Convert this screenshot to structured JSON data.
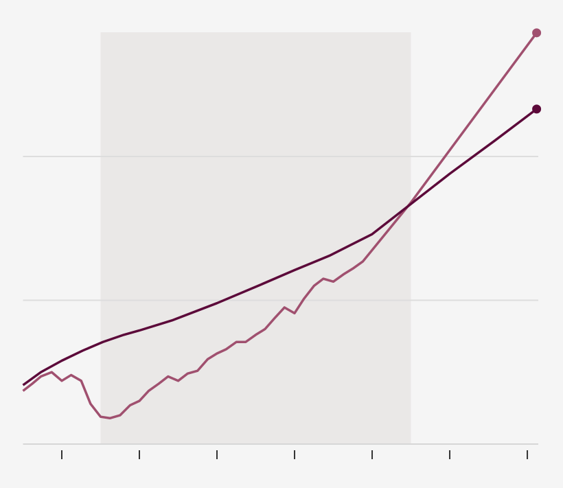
{
  "chart_data": {
    "type": "line",
    "xlim": [
      -0.5,
      6.12
    ],
    "xticks": [
      0,
      1,
      2,
      3,
      4,
      5,
      6
    ],
    "ylim": [
      0,
      2.9
    ],
    "yticks": [
      0,
      1,
      2
    ],
    "grid": true,
    "shade": [
      0.5,
      4.5
    ],
    "shade_color": "#eae8e7",
    "end_markers": true,
    "series": [
      {
        "color": "#a0506f",
        "x": [
          -0.5,
          -0.38,
          -0.27,
          -0.13,
          0,
          0.12,
          0.25,
          0.37,
          0.5,
          0.62,
          0.75,
          0.88,
          1.0,
          1.12,
          1.25,
          1.37,
          1.5,
          1.62,
          1.75,
          1.88,
          2.0,
          2.12,
          2.25,
          2.37,
          2.5,
          2.62,
          2.75,
          2.87,
          3.0,
          3.12,
          3.25,
          3.37,
          3.5,
          3.63,
          3.75,
          3.88,
          4.5,
          6.12
        ],
        "values": [
          0.37,
          0.42,
          0.47,
          0.5,
          0.44,
          0.48,
          0.44,
          0.28,
          0.19,
          0.18,
          0.2,
          0.27,
          0.3,
          0.37,
          0.42,
          0.47,
          0.44,
          0.49,
          0.51,
          0.59,
          0.63,
          0.66,
          0.71,
          0.71,
          0.76,
          0.8,
          0.88,
          0.95,
          0.91,
          1.01,
          1.1,
          1.15,
          1.13,
          1.18,
          1.22,
          1.27,
          1.68,
          2.86
        ]
      },
      {
        "color": "#5c0a3a",
        "x": [
          -0.5,
          -0.27,
          0,
          0.27,
          0.53,
          0.8,
          1.0,
          1.42,
          2.0,
          2.57,
          3.0,
          3.45,
          4.0,
          4.5,
          5.0,
          5.58,
          6.12
        ],
        "values": [
          0.41,
          0.5,
          0.58,
          0.65,
          0.71,
          0.76,
          0.79,
          0.86,
          0.98,
          1.11,
          1.21,
          1.31,
          1.46,
          1.67,
          1.88,
          2.11,
          2.33
        ]
      }
    ]
  }
}
